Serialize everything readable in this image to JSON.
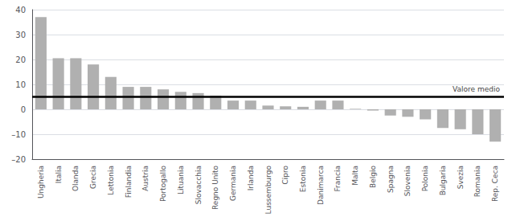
{
  "chart_data": {
    "type": "bar",
    "categories": [
      "Ungheria",
      "Italia",
      "Olanda",
      "Grecia",
      "Lettonia",
      "Finlandia",
      "Austria",
      "Portogallo",
      "Lituania",
      "Slovacchia",
      "Regno Unito",
      "Germania",
      "Irlanda",
      "Lussemburgo",
      "Cipro",
      "Estonia",
      "Danimarca",
      "Francia",
      "Malta",
      "Belgio",
      "Spagna",
      "Slovenia",
      "Polonia",
      "Bulgaria",
      "Svezia",
      "Romania",
      "Rep. Ceca"
    ],
    "values": [
      37,
      20.5,
      20.5,
      18,
      13,
      9,
      9,
      8,
      7,
      6.5,
      5.5,
      3.5,
      3.5,
      1.5,
      1.2,
      1.0,
      3.5,
      3.5,
      0.2,
      -0.5,
      -2.5,
      -3,
      -4,
      -7.5,
      -8,
      -10,
      -13
    ],
    "color": "#b0b0b0",
    "mean_line": {
      "value": 5,
      "label": "Valore medio",
      "color": "#000000"
    },
    "ylim": [
      -20,
      40
    ],
    "yticks": [
      {
        "value": -20,
        "label": "–20"
      },
      {
        "value": -10,
        "label": "–10"
      },
      0,
      10,
      20,
      30,
      40
    ],
    "grid": true
  }
}
